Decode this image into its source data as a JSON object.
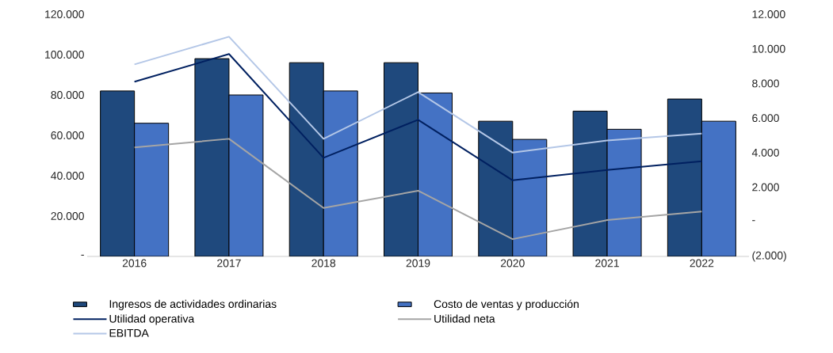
{
  "chart_data": {
    "type": "bar",
    "categories": [
      "2016",
      "2017",
      "2018",
      "2019",
      "2020",
      "2021",
      "2022"
    ],
    "series": [
      {
        "name": "Ingresos de actividades ordinarias",
        "type": "bar",
        "color": "#1f497d",
        "values": [
          82000,
          98000,
          96000,
          96000,
          67000,
          72000,
          78000
        ]
      },
      {
        "name": "Costo de ventas y producción",
        "type": "bar",
        "color": "#4472c4",
        "values": [
          66000,
          80000,
          82000,
          81000,
          58000,
          63000,
          67000
        ]
      },
      {
        "name": "Utilidad operativa",
        "type": "line",
        "axis": "y2",
        "color": "#002060",
        "values": [
          8100,
          9700,
          3700,
          5900,
          2400,
          3000,
          3500
        ]
      },
      {
        "name": "Utilidad neta",
        "type": "line",
        "axis": "y2",
        "color": "#a5a5a5",
        "values": [
          4300,
          4800,
          800,
          1800,
          -1000,
          100,
          600
        ]
      },
      {
        "name": "EBITDA",
        "type": "line",
        "axis": "y2",
        "color": "#b4c7e7",
        "values": [
          9100,
          10700,
          4800,
          7500,
          4000,
          4700,
          5100
        ]
      }
    ],
    "ylim": [
      0,
      120000
    ],
    "yticks": [
      {
        "value": 0,
        "label": "-"
      },
      {
        "value": 20000,
        "label": "20.000"
      },
      {
        "value": 40000,
        "label": "40.000"
      },
      {
        "value": 60000,
        "label": "60.000"
      },
      {
        "value": 80000,
        "label": "80.000"
      },
      {
        "value": 100000,
        "label": "100.000"
      },
      {
        "value": 120000,
        "label": "120.000"
      }
    ],
    "y2lim": [
      -2000,
      12000
    ],
    "y2ticks": [
      {
        "value": -2000,
        "label": "(2.000)"
      },
      {
        "value": 0,
        "label": "-"
      },
      {
        "value": 2000,
        "label": "2.000"
      },
      {
        "value": 4000,
        "label": "4.000"
      },
      {
        "value": 6000,
        "label": "6.000"
      },
      {
        "value": 8000,
        "label": "8.000"
      },
      {
        "value": 10000,
        "label": "10.000"
      },
      {
        "value": 12000,
        "label": "12.000"
      }
    ],
    "legend": "bottom",
    "grid": false,
    "marker": "none",
    "line_style": "solid"
  }
}
